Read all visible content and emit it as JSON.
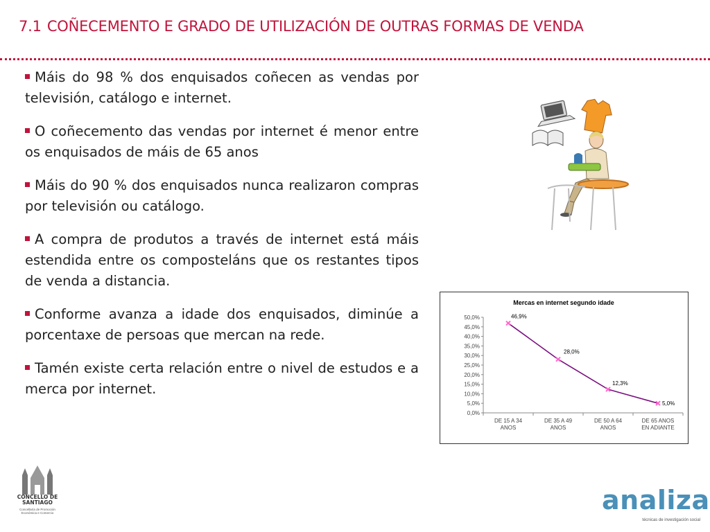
{
  "slide": {
    "number": "7.1",
    "title": "COÑECEMENTO E GRADO DE UTILIZACIÓN DE OUTRAS FORMAS DE VENDA",
    "bullets": [
      "Máis do 98 % dos enquisados coñecen as vendas por televisión, catálogo e internet.",
      "O coñecemento das vendas por internet é menor entre os enquisados de máis de 65 anos",
      "Máis do 90 % dos enquisados nunca realizaron compras por televisión ou catálogo.",
      "A compra de produtos a través de internet está máis estendida entre os composteláns que os restantes tipos de venda  a distancia.",
      "Conforme avanza a idade dos enquisados, diminúe a porcentaxe de persoas que mercan na rede.",
      "Tamén existe certa relación entre o nivel de estudos e a merca por internet."
    ]
  },
  "colors": {
    "accent": "#c0143c",
    "line": "#7a0f7f",
    "marker": "#ff66cc",
    "brand": "#4a90b8"
  },
  "chart_data": {
    "type": "line",
    "title": "Mercas en internet segundo idade",
    "categories": [
      [
        "DE 15 A 34",
        "ANOS"
      ],
      [
        "DE 35 A 49",
        "ANOS"
      ],
      [
        "DE 50 A 64",
        "ANOS"
      ],
      [
        "DE 65 ANOS",
        "EN ADIANTE"
      ]
    ],
    "series": [
      {
        "values": [
          46.9,
          28.0,
          12.3,
          5.0
        ]
      }
    ],
    "data_labels": [
      "46,9%",
      "28,0%",
      "12,3%",
      "5,0%"
    ],
    "y_ticks": [
      "0,0%",
      "5,0%",
      "10,0%",
      "15,0%",
      "20,0%",
      "25,0%",
      "30,0%",
      "35,0%",
      "40,0%",
      "45,0%",
      "50,0%"
    ],
    "ylim": [
      0,
      50
    ],
    "grid": false,
    "xlabel": "",
    "ylabel": ""
  },
  "logos": {
    "left_name": "CONCELLO DE SANTIAGO",
    "left_sub": "Concellaría de Promoción Económica e Comercio",
    "right_name": "analiza",
    "right_tagline": "técnicas de investigación social"
  }
}
